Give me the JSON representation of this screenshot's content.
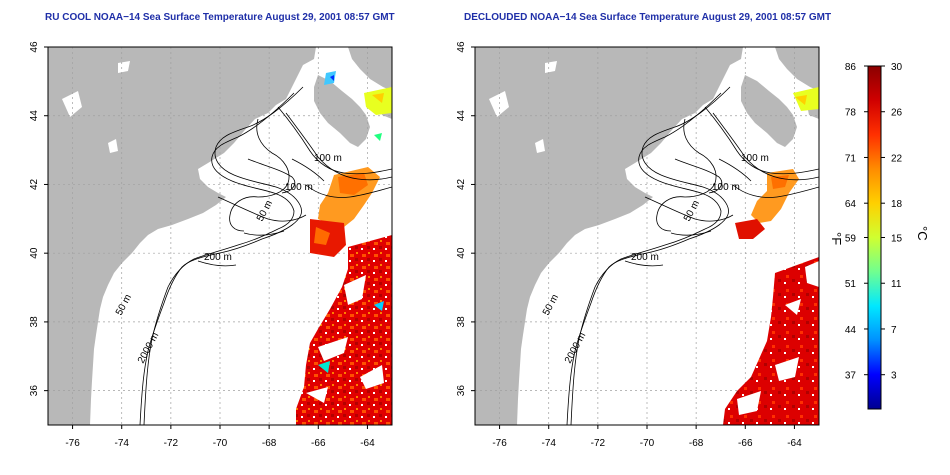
{
  "panels": [
    {
      "id": "left",
      "title": "RU COOL NOAA−14 Sea Surface Temperature August 29, 2001 08:57 GMT",
      "x_ticks": [
        "-76",
        "-74",
        "-72",
        "-70",
        "-68",
        "-66",
        "-64"
      ],
      "y_ticks": [
        "46",
        "44",
        "42",
        "40",
        "38",
        "36"
      ],
      "contour_labels": [
        "100 m",
        "100 m",
        "50 m",
        "200 m",
        "50 m",
        "2000 m"
      ]
    },
    {
      "id": "right",
      "title": "DECLOUDED NOAA−14 Sea Surface Temperature August 29, 2001 08:57 GMT",
      "x_ticks": [
        "-76",
        "-74",
        "-72",
        "-70",
        "-68",
        "-66",
        "-64"
      ],
      "y_ticks": [
        "46",
        "44",
        "42",
        "40",
        "38",
        "36"
      ],
      "contour_labels": [
        "100 m",
        "100 m",
        "50 m",
        "200 m",
        "50 m",
        "2000 m"
      ]
    }
  ],
  "colorbar": {
    "fahrenheit_ticks": [
      "86",
      "78",
      "71",
      "64",
      "59",
      "51",
      "44",
      "37"
    ],
    "celsius_ticks": [
      "30",
      "26",
      "22",
      "18",
      "15",
      "11",
      "7",
      "3"
    ],
    "fahrenheit_unit": "°F",
    "celsius_unit": "°C",
    "colors": [
      "#000090",
      "#0000ff",
      "#0090ff",
      "#00e8ff",
      "#70ff90",
      "#d0ff30",
      "#ffd000",
      "#ff8c00",
      "#ff3000",
      "#d00000",
      "#8b0000"
    ]
  },
  "map_colors": {
    "land": "#b8b8b8",
    "ocean": "#ffffff",
    "contour": "#000000",
    "grid": "#a0a0a0"
  }
}
